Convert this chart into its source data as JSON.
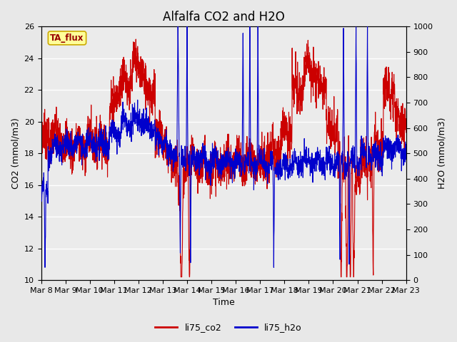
{
  "title": "Alfalfa CO2 and H2O",
  "xlabel": "Time",
  "ylabel_left": "CO2 (mmol/m3)",
  "ylabel_right": "H2O (mmol/m3)",
  "ylim_left": [
    10,
    26
  ],
  "ylim_right": [
    0,
    1000
  ],
  "yticks_left": [
    10,
    12,
    14,
    16,
    18,
    20,
    22,
    24,
    26
  ],
  "yticks_right": [
    0,
    100,
    200,
    300,
    400,
    500,
    600,
    700,
    800,
    900,
    1000
  ],
  "x_tick_labels": [
    "Mar 8",
    "Mar 9",
    "Mar 10",
    "Mar 11",
    "Mar 12",
    "Mar 13",
    "Mar 14",
    "Mar 15",
    "Mar 16",
    "Mar 17",
    "Mar 18",
    "Mar 19",
    "Mar 20",
    "Mar 21",
    "Mar 22",
    "Mar 23"
  ],
  "legend_entries": [
    "li75_co2",
    "li75_h2o"
  ],
  "line_colors": [
    "#cc0000",
    "#0000cc"
  ],
  "fig_bg_color": "#e8e8e8",
  "plot_bg_color": "#ebebeb",
  "annotation_text": "TA_flux",
  "annotation_bg": "#ffff99",
  "annotation_border": "#ccaa00",
  "grid_color": "#ffffff",
  "title_fontsize": 12,
  "label_fontsize": 9,
  "tick_fontsize": 8
}
